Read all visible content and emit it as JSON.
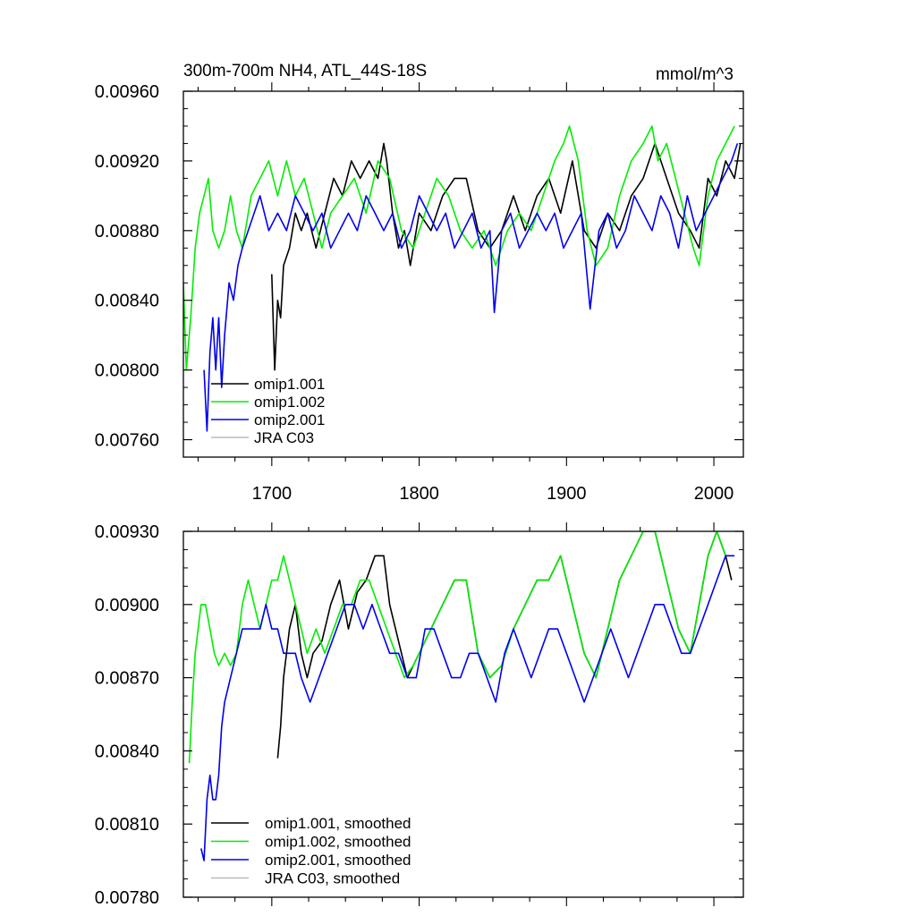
{
  "chart_data": [
    {
      "type": "line",
      "title": "300m-700m NH4, ATL_44S-18S",
      "units": "mmol/m^3",
      "xlim": [
        1640,
        2020
      ],
      "ylim": [
        0.0075,
        0.0096
      ],
      "x_ticks": [
        "1700",
        "1800",
        "1900",
        "2000"
      ],
      "y_ticks": [
        "0.00760",
        "0.00800",
        "0.00840",
        "0.00880",
        "0.00920",
        "0.00960"
      ],
      "grid": false,
      "legend_position": "bottom-left",
      "series": [
        {
          "name": "omip1.001",
          "color": "#000000",
          "x": [
            1700,
            1702,
            1704,
            1706,
            1708,
            1712,
            1716,
            1720,
            1724,
            1730,
            1736,
            1742,
            1748,
            1754,
            1760,
            1766,
            1772,
            1776,
            1778,
            1782,
            1786,
            1790,
            1794,
            1800,
            1808,
            1816,
            1824,
            1832,
            1840,
            1848,
            1856,
            1864,
            1872,
            1880,
            1888,
            1896,
            1904,
            1912,
            1920,
            1928,
            1936,
            1944,
            1952,
            1960,
            1968,
            1976,
            1984,
            1990,
            1996,
            2002,
            2008,
            2014,
            2018
          ],
          "y": [
            0.00855,
            0.008,
            0.0084,
            0.0083,
            0.0086,
            0.0087,
            0.0089,
            0.0088,
            0.0089,
            0.0087,
            0.0089,
            0.0091,
            0.009,
            0.0092,
            0.0091,
            0.0092,
            0.0091,
            0.0093,
            0.0092,
            0.0089,
            0.0087,
            0.0088,
            0.0086,
            0.0089,
            0.0088,
            0.009,
            0.0091,
            0.0091,
            0.0088,
            0.0087,
            0.0088,
            0.009,
            0.0088,
            0.009,
            0.0091,
            0.0089,
            0.0092,
            0.0088,
            0.0087,
            0.0089,
            0.0088,
            0.009,
            0.0091,
            0.0093,
            0.0091,
            0.0089,
            0.0088,
            0.0087,
            0.0091,
            0.009,
            0.0092,
            0.0091,
            0.0093
          ]
        },
        {
          "name": "omip1.002",
          "color": "#00ee00",
          "x": [
            1640,
            1642,
            1645,
            1648,
            1651,
            1654,
            1657,
            1660,
            1664,
            1668,
            1672,
            1676,
            1680,
            1686,
            1692,
            1698,
            1704,
            1710,
            1716,
            1722,
            1728,
            1734,
            1740,
            1748,
            1756,
            1764,
            1772,
            1780,
            1788,
            1796,
            1804,
            1812,
            1820,
            1828,
            1836,
            1844,
            1852,
            1860,
            1868,
            1876,
            1884,
            1892,
            1898,
            1902,
            1908,
            1914,
            1920,
            1928,
            1936,
            1944,
            1952,
            1958,
            1962,
            1968,
            1974,
            1980,
            1986,
            1990,
            1996,
            2002,
            2008,
            2014
          ],
          "y": [
            0.0085,
            0.008,
            0.0083,
            0.0087,
            0.0089,
            0.009,
            0.0091,
            0.0088,
            0.0087,
            0.0088,
            0.009,
            0.0088,
            0.0087,
            0.009,
            0.0091,
            0.0092,
            0.009,
            0.0092,
            0.009,
            0.0091,
            0.0089,
            0.0087,
            0.0089,
            0.009,
            0.0091,
            0.0089,
            0.0092,
            0.0091,
            0.0088,
            0.0087,
            0.0089,
            0.0091,
            0.009,
            0.0088,
            0.0087,
            0.0088,
            0.0086,
            0.0088,
            0.0089,
            0.0088,
            0.009,
            0.0092,
            0.0093,
            0.0094,
            0.0092,
            0.0088,
            0.0086,
            0.0087,
            0.009,
            0.0092,
            0.0093,
            0.0094,
            0.0092,
            0.0093,
            0.0091,
            0.0089,
            0.0087,
            0.0086,
            0.009,
            0.0092,
            0.0093,
            0.0094
          ]
        },
        {
          "name": "omip2.001",
          "color": "#0000ee",
          "x": [
            1654,
            1656,
            1658,
            1660,
            1662,
            1664,
            1666,
            1668,
            1671,
            1674,
            1677,
            1680,
            1684,
            1688,
            1692,
            1698,
            1704,
            1710,
            1716,
            1722,
            1728,
            1734,
            1740,
            1746,
            1752,
            1758,
            1764,
            1770,
            1776,
            1782,
            1788,
            1794,
            1800,
            1806,
            1812,
            1818,
            1824,
            1830,
            1836,
            1842,
            1848,
            1851,
            1856,
            1862,
            1868,
            1874,
            1880,
            1886,
            1892,
            1898,
            1904,
            1910,
            1916,
            1922,
            1928,
            1934,
            1940,
            1946,
            1952,
            1958,
            1964,
            1970,
            1976,
            1982,
            1988,
            1994,
            2000,
            2006,
            2012,
            2016
          ],
          "y": [
            0.008,
            0.00765,
            0.0081,
            0.0083,
            0.008,
            0.0083,
            0.0079,
            0.0082,
            0.0085,
            0.0084,
            0.0086,
            0.0087,
            0.0088,
            0.0089,
            0.009,
            0.0088,
            0.0089,
            0.0088,
            0.009,
            0.0089,
            0.0088,
            0.0089,
            0.0087,
            0.0088,
            0.0089,
            0.0088,
            0.009,
            0.0089,
            0.0088,
            0.0089,
            0.0087,
            0.0088,
            0.009,
            0.0089,
            0.0088,
            0.0089,
            0.0087,
            0.0088,
            0.0089,
            0.0087,
            0.0088,
            0.00833,
            0.0088,
            0.0089,
            0.0087,
            0.0088,
            0.0089,
            0.0088,
            0.0089,
            0.0087,
            0.0088,
            0.0089,
            0.00835,
            0.0088,
            0.0089,
            0.0087,
            0.0088,
            0.009,
            0.0089,
            0.0088,
            0.009,
            0.0089,
            0.0087,
            0.009,
            0.0088,
            0.0089,
            0.009,
            0.0091,
            0.0092,
            0.0093
          ]
        },
        {
          "name": "JRA C03",
          "color": "#bbbbbb",
          "x": [],
          "y": []
        }
      ]
    },
    {
      "type": "line",
      "title": "",
      "xlim": [
        1640,
        2020
      ],
      "ylim": [
        0.0078,
        0.0093
      ],
      "y_ticks": [
        "0.00780",
        "0.00810",
        "0.00840",
        "0.00870",
        "0.00900",
        "0.00930"
      ],
      "grid": false,
      "legend_position": "bottom-left",
      "series": [
        {
          "name": "omip1.001, smoothed",
          "color": "#000000",
          "x": [
            1704,
            1706,
            1708,
            1710,
            1712,
            1716,
            1720,
            1724,
            1728,
            1734,
            1740,
            1746,
            1752,
            1758,
            1764,
            1770,
            1776,
            1780,
            1784,
            1788,
            1792,
            1796,
            1800,
            1808,
            1816,
            1824,
            1832,
            1840,
            1848,
            1856,
            1864,
            1872,
            1880,
            1888,
            1896,
            1904,
            1912,
            1920,
            1928,
            1936,
            1944,
            1952,
            1960,
            1968,
            1976,
            1984,
            1990,
            1996,
            2002,
            2008,
            2012
          ],
          "y": [
            0.00837,
            0.0085,
            0.0087,
            0.0088,
            0.0089,
            0.009,
            0.0088,
            0.0087,
            0.0088,
            0.00885,
            0.009,
            0.0091,
            0.0089,
            0.00905,
            0.0091,
            0.0092,
            0.0092,
            0.009,
            0.0089,
            0.0088,
            0.0087,
            0.00875,
            0.0088,
            0.0089,
            0.009,
            0.0091,
            0.0091,
            0.0088,
            0.0087,
            0.00875,
            0.0089,
            0.009,
            0.0091,
            0.0091,
            0.0092,
            0.009,
            0.0088,
            0.0087,
            0.0089,
            0.0091,
            0.0092,
            0.0093,
            0.0093,
            0.0091,
            0.0089,
            0.0088,
            0.009,
            0.0092,
            0.0093,
            0.0092,
            0.0091
          ]
        },
        {
          "name": "omip1.002, smoothed",
          "color": "#00ee00",
          "x": [
            1644,
            1646,
            1648,
            1650,
            1652,
            1655,
            1658,
            1661,
            1664,
            1668,
            1672,
            1676,
            1680,
            1684,
            1688,
            1692,
            1696,
            1700,
            1704,
            1708,
            1712,
            1716,
            1720,
            1724,
            1730,
            1736,
            1742,
            1748,
            1754,
            1760,
            1766,
            1772,
            1778,
            1784,
            1790,
            1796,
            1800,
            1808,
            1816,
            1824,
            1832,
            1840,
            1848,
            1856,
            1864,
            1872,
            1880,
            1888,
            1896,
            1904,
            1912,
            1920,
            1928,
            1936,
            1944,
            1952,
            1960,
            1968,
            1976,
            1984,
            1990,
            1996,
            2002,
            2008
          ],
          "y": [
            0.00835,
            0.0086,
            0.0088,
            0.0089,
            0.009,
            0.009,
            0.0089,
            0.0088,
            0.00875,
            0.0088,
            0.00875,
            0.0088,
            0.009,
            0.0091,
            0.009,
            0.0089,
            0.009,
            0.0091,
            0.0091,
            0.0092,
            0.0091,
            0.009,
            0.0089,
            0.0088,
            0.0089,
            0.0088,
            0.0089,
            0.009,
            0.009,
            0.0091,
            0.0091,
            0.009,
            0.0089,
            0.0088,
            0.0087,
            0.00875,
            0.0088,
            0.0089,
            0.009,
            0.0091,
            0.0091,
            0.0088,
            0.0087,
            0.00875,
            0.0089,
            0.009,
            0.0091,
            0.0091,
            0.0092,
            0.009,
            0.0088,
            0.0087,
            0.0089,
            0.0091,
            0.0092,
            0.0093,
            0.0093,
            0.0091,
            0.0089,
            0.0088,
            0.009,
            0.0092,
            0.0093,
            0.0092
          ]
        },
        {
          "name": "omip2.001, smoothed",
          "color": "#0000ee",
          "x": [
            1652,
            1654,
            1656,
            1658,
            1660,
            1662,
            1664,
            1666,
            1668,
            1672,
            1676,
            1680,
            1684,
            1688,
            1692,
            1696,
            1700,
            1704,
            1708,
            1712,
            1716,
            1720,
            1726,
            1732,
            1738,
            1744,
            1750,
            1756,
            1762,
            1768,
            1774,
            1780,
            1786,
            1792,
            1798,
            1804,
            1810,
            1816,
            1822,
            1828,
            1834,
            1840,
            1846,
            1852,
            1858,
            1864,
            1870,
            1876,
            1882,
            1888,
            1894,
            1900,
            1906,
            1912,
            1918,
            1924,
            1930,
            1936,
            1942,
            1948,
            1954,
            1960,
            1966,
            1972,
            1978,
            1984,
            1990,
            1996,
            2002,
            2008,
            2014
          ],
          "y": [
            0.008,
            0.00795,
            0.0082,
            0.0083,
            0.0082,
            0.0082,
            0.0083,
            0.0085,
            0.0086,
            0.0087,
            0.0088,
            0.0089,
            0.0089,
            0.0089,
            0.0089,
            0.009,
            0.0089,
            0.0089,
            0.0088,
            0.0088,
            0.0088,
            0.0087,
            0.0086,
            0.0087,
            0.0088,
            0.0089,
            0.009,
            0.009,
            0.0089,
            0.009,
            0.0089,
            0.0088,
            0.0088,
            0.0087,
            0.0087,
            0.0089,
            0.0089,
            0.0088,
            0.0087,
            0.0087,
            0.0088,
            0.0088,
            0.0087,
            0.0086,
            0.0088,
            0.0089,
            0.0088,
            0.0087,
            0.0088,
            0.0089,
            0.0089,
            0.0088,
            0.0087,
            0.0086,
            0.0087,
            0.0088,
            0.0089,
            0.0088,
            0.0087,
            0.0088,
            0.0089,
            0.009,
            0.009,
            0.0089,
            0.0088,
            0.0088,
            0.0089,
            0.009,
            0.0091,
            0.0092,
            0.0092
          ]
        },
        {
          "name": "JRA C03, smoothed",
          "color": "#bbbbbb",
          "x": [],
          "y": []
        }
      ]
    }
  ]
}
